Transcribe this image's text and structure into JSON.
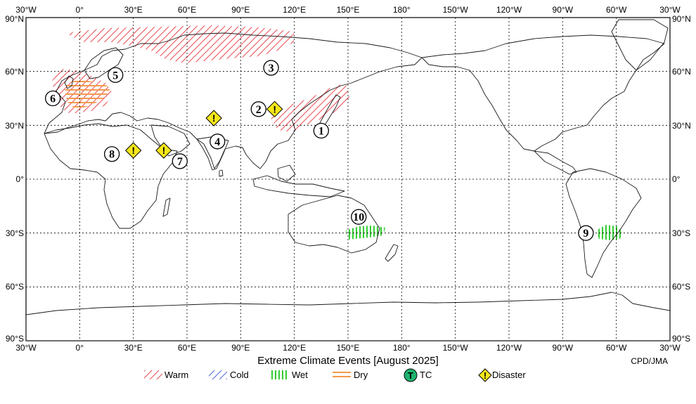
{
  "title": "Extreme Climate Events [August 2025]",
  "credit": "CPD/JMA",
  "lon_ticks": [
    "30°W",
    "0°",
    "30°E",
    "60°E",
    "90°E",
    "120°E",
    "150°E",
    "180°",
    "150°W",
    "120°W",
    "90°W",
    "60°W",
    "30°W"
  ],
  "lat_ticks": [
    "90°N",
    "60°N",
    "30°N",
    "0°",
    "30°S",
    "60°S",
    "90°S"
  ],
  "legend": [
    {
      "key": "warm",
      "label": "Warm",
      "icon": "red-hatch-icon"
    },
    {
      "key": "cold",
      "label": "Cold",
      "icon": "blue-hatch-icon"
    },
    {
      "key": "wet",
      "label": "Wet",
      "icon": "green-hatch-icon"
    },
    {
      "key": "dry",
      "label": "Dry",
      "icon": "orange-hatch-icon"
    },
    {
      "key": "tc",
      "label": "TC",
      "icon": "tropical-cyclone-icon",
      "symbol": "T"
    },
    {
      "key": "disaster",
      "label": "Disaster",
      "icon": "disaster-icon",
      "symbol": "!"
    }
  ],
  "colors": {
    "warm": "#e8484f",
    "cold": "#4a67d8",
    "wet": "#33cc33",
    "dry": "#f39a4b",
    "tc": "#1fb36f",
    "disaster": "#f5e61a"
  },
  "markers": [
    {
      "num": "1",
      "lon": 135,
      "lat": 27
    },
    {
      "num": "2",
      "lon": 100,
      "lat": 39
    },
    {
      "num": "3",
      "lon": 107,
      "lat": 62
    },
    {
      "num": "4",
      "lon": 77,
      "lat": 21
    },
    {
      "num": "5",
      "lon": 20,
      "lat": 58
    },
    {
      "num": "6",
      "lon": -15,
      "lat": 45
    },
    {
      "num": "7",
      "lon": 56,
      "lat": 10
    },
    {
      "num": "8",
      "lon": 18,
      "lat": 14
    },
    {
      "num": "9",
      "lon": -77,
      "lat": -30
    },
    {
      "num": "10",
      "lon": 156,
      "lat": -21
    }
  ],
  "disasters": [
    {
      "lon": 109,
      "lat": 39
    },
    {
      "lon": 75,
      "lat": 34
    },
    {
      "lon": 30,
      "lat": 16
    },
    {
      "lon": 47,
      "lat": 16
    }
  ]
}
